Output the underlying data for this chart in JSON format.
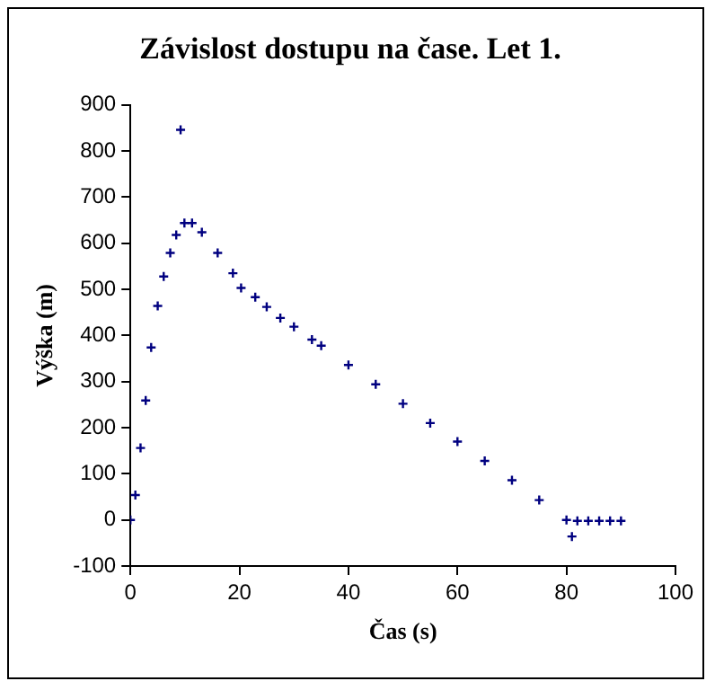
{
  "chart_data": {
    "type": "scatter",
    "title": "Závislost dostupu na čase. Let 1.",
    "xlabel": "Čas (s)",
    "ylabel": "Výška (m)",
    "xlim": [
      0,
      100
    ],
    "xticks": [
      0,
      20,
      40,
      60,
      80,
      100
    ],
    "ylim": [
      -100,
      900
    ],
    "yticks": [
      -100,
      0,
      100,
      200,
      300,
      400,
      500,
      600,
      700,
      800,
      900
    ],
    "grid": false,
    "legend": false,
    "marker": "cross",
    "series": [
      {
        "color": "#000080",
        "x": [
          0,
          0.9,
          1.85,
          2.8,
          3.8,
          5,
          6.1,
          7.3,
          8.4,
          9.2,
          9.9,
          11.3,
          13.1,
          16,
          18.8,
          20.3,
          22.9,
          25,
          27.5,
          30,
          33.3,
          35,
          40,
          45,
          50,
          55,
          60,
          65,
          70,
          75,
          80,
          81,
          82,
          84,
          86,
          88,
          90
        ],
        "values": [
          0,
          54,
          156,
          259,
          374,
          464,
          528,
          579,
          618,
          846,
          644,
          644,
          624,
          579,
          535,
          503,
          483,
          462,
          438,
          419,
          391,
          378,
          336,
          294,
          252,
          210,
          170,
          128,
          86,
          43,
          0,
          -36,
          -2,
          -2,
          -2,
          -2,
          -2
        ]
      }
    ]
  }
}
